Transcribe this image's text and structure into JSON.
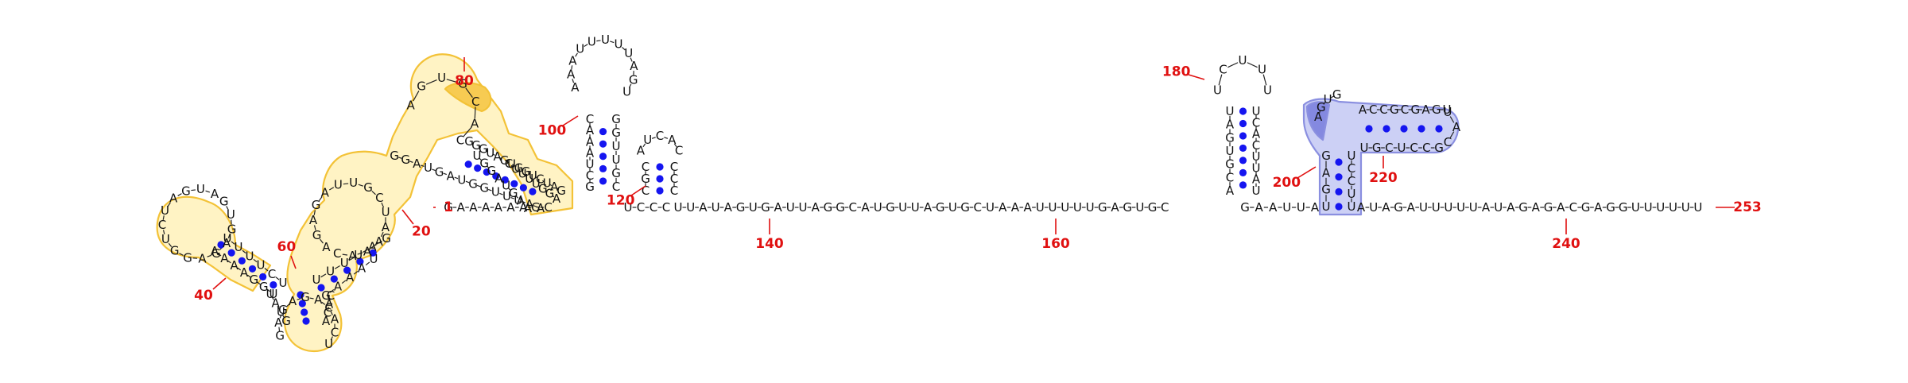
{
  "title": "RNA secondary structure diagram",
  "colors": {
    "nucleotide": "#111111",
    "backbone": "#222222",
    "pair_dot": "#1515f0",
    "number": "#e01010",
    "highlight_yellow_fill": "#fff3c4",
    "highlight_yellow_stroke": "#f3c237",
    "highlight_yellow_strong": "#f7cb52",
    "highlight_blue_fill": "#ccd0f5",
    "highlight_blue_stroke": "#8a8fe0",
    "highlight_blue_strong": "#8489e0"
  },
  "sequence_length": 253,
  "numbers": [
    {
      "id": "n1",
      "text": "1"
    },
    {
      "id": "n20",
      "text": "20"
    },
    {
      "id": "n40",
      "text": "40"
    },
    {
      "id": "n60",
      "text": "60"
    },
    {
      "id": "n80",
      "text": "80"
    },
    {
      "id": "n100",
      "text": "100"
    },
    {
      "id": "n120",
      "text": "120"
    },
    {
      "id": "n140",
      "text": "140"
    },
    {
      "id": "n160",
      "text": "160"
    },
    {
      "id": "n180",
      "text": "180"
    },
    {
      "id": "n200",
      "text": "200"
    },
    {
      "id": "n220",
      "text": "220"
    },
    {
      "id": "n240",
      "text": "240"
    },
    {
      "id": "n253",
      "text": "253"
    }
  ],
  "segments": {
    "linker_1_9": "GAAAAAAGC",
    "hairpin_94_110_left": "GCUAAAC",
    "hairpin_94_110_loop": "AAAUUUUUAGU",
    "hairpin_94_110_right": "GGUUGC",
    "small_hairpin_left": "UCCC",
    "small_hairpin_loop": "AUCAC",
    "small_hairpin_right": "CCGCG",
    "linker_131_176": "UUAUAGUGAUUAGGCAUGUUAGUGCUAAAUUUUUGAGUGC",
    "hairpin_178_192_left": "GAGUAUUC",
    "hairpin_178_192_loop": "UCUUU",
    "hairpin_178_192_right": "AUUUACAUG",
    "linker_193_197": "GAAUUA",
    "pk_stem_left": "UGAG",
    "pk_loop_outer": "AACCGCGAGUUACCUCGU",
    "pk_stem_right": "UCCUU",
    "tail_3prime": "AUAGAUUUUUAUAGAGACGAGGUUUUUU"
  },
  "domain_yellow": {
    "left_spine": "AAUUUGGUAGUAGG",
    "right_spine": "GAUCUGGUGAUGGG",
    "upper_loop": "AGUGCAC",
    "mid_strand_left": "UGGAUGAA",
    "mid_strand_right": "CUUUUGGA",
    "loop_left_big": "GUGAGAGGUCUAGUA",
    "left_stem_outer": "UUUUCU",
    "left_stem_inner": "AAAAGGU",
    "bottom_loop": "GAGAGACACU",
    "bottom_stem_left": "UAUG",
    "bottom_stem_right": "ACAC",
    "mid_loop": "AGAGAUUGCUAAAAC",
    "mid_stem_outer": "UUUUAG",
    "mid_stem_inner": "GAAAU"
  }
}
